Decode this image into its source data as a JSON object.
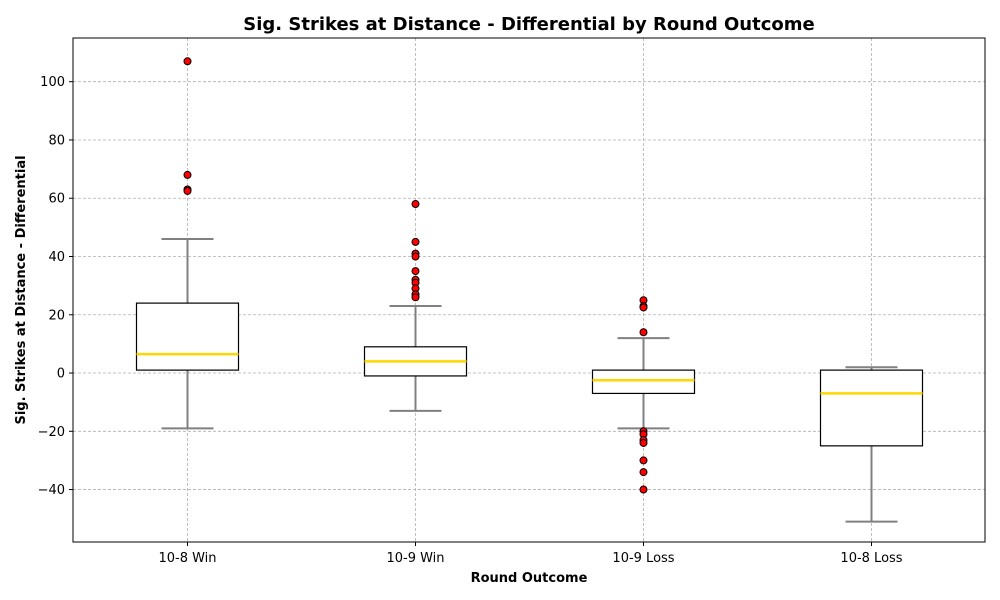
{
  "chart_data": {
    "type": "box",
    "title": "Sig. Strikes at Distance - Differential by Round Outcome",
    "xlabel": "Round Outcome",
    "ylabel": "Sig. Strikes at Distance - Differential",
    "categories": [
      "10-8 Win",
      "10-9 Win",
      "10-9 Loss",
      "10-8 Loss"
    ],
    "ylim": [
      -58,
      115
    ],
    "yticks": [
      -40,
      -20,
      0,
      20,
      40,
      60,
      80,
      100
    ],
    "grid": true,
    "boxes": [
      {
        "category": "10-8 Win",
        "whisker_low": -19,
        "q1": 1,
        "median": 6.5,
        "q3": 24,
        "whisker_high": 46,
        "outliers": [
          107,
          68,
          63,
          62.5
        ]
      },
      {
        "category": "10-9 Win",
        "whisker_low": -13,
        "q1": -1,
        "median": 4,
        "q3": 9,
        "whisker_high": 23,
        "outliers": [
          58,
          45,
          41,
          40,
          35,
          32,
          31,
          29,
          27,
          26
        ]
      },
      {
        "category": "10-9 Loss",
        "whisker_low": -19,
        "q1": -7,
        "median": -2.5,
        "q3": 1,
        "whisker_high": 12,
        "outliers": [
          25,
          23,
          22.5,
          14,
          -20,
          -21,
          -23,
          -24,
          -30,
          -34,
          -40
        ]
      },
      {
        "category": "10-8 Loss",
        "whisker_low": -51,
        "q1": -25,
        "median": -7,
        "q3": 1,
        "whisker_high": 2,
        "outliers": []
      }
    ],
    "colors": {
      "box_edge": "#000000",
      "median": "#ffd700",
      "whisker": "#808080",
      "outlier_fill": "#ff0000",
      "outlier_edge": "#000000"
    }
  }
}
